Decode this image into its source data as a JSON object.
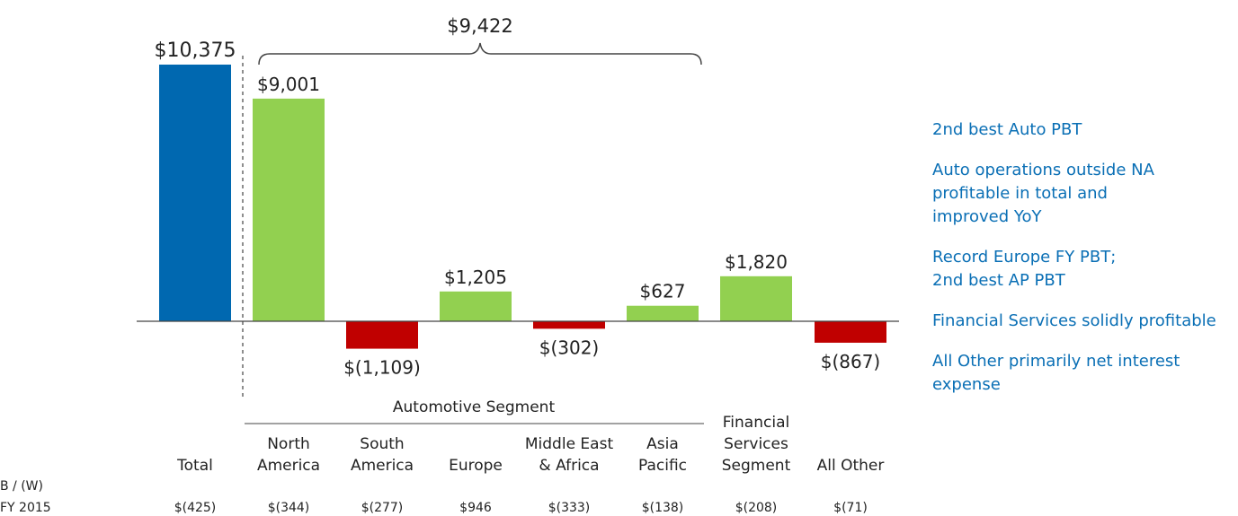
{
  "chart_data": {
    "type": "bar",
    "categories": [
      "Total",
      "North\nAmerica",
      "South\nAmerica",
      "Europe",
      "Middle East\n& Africa",
      "Asia\nPacific",
      "Financial\nServices\nSegment",
      "All Other"
    ],
    "values": [
      10375,
      9001,
      -1109,
      1205,
      -302,
      627,
      1820,
      -867
    ],
    "value_labels": [
      "$10,375",
      "$9,001",
      "$(1,109)",
      "$1,205",
      "$(302)",
      "$627",
      "$1,820",
      "$(867)"
    ],
    "colors": [
      "#0068b0",
      "#92d050",
      "#c00000",
      "#92d050",
      "#c00000",
      "#92d050",
      "#92d050",
      "#c00000"
    ],
    "bracket_label": "$9,422",
    "segment_label": "Automotive Segment",
    "comparison": {
      "header": "B / (W)",
      "row_label": "FY 2015",
      "values": [
        "$(425)",
        "$(344)",
        "$(277)",
        "$946",
        "$(333)",
        "$(138)",
        "$(208)",
        "$(71)"
      ]
    }
  },
  "notes": [
    "2nd best Auto PBT",
    "Auto operations outside NA\nprofitable in total and\nimproved YoY",
    "Record Europe FY PBT;\n2nd best AP PBT",
    "Financial Services solidly profitable",
    "All Other primarily net interest\nexpense"
  ]
}
